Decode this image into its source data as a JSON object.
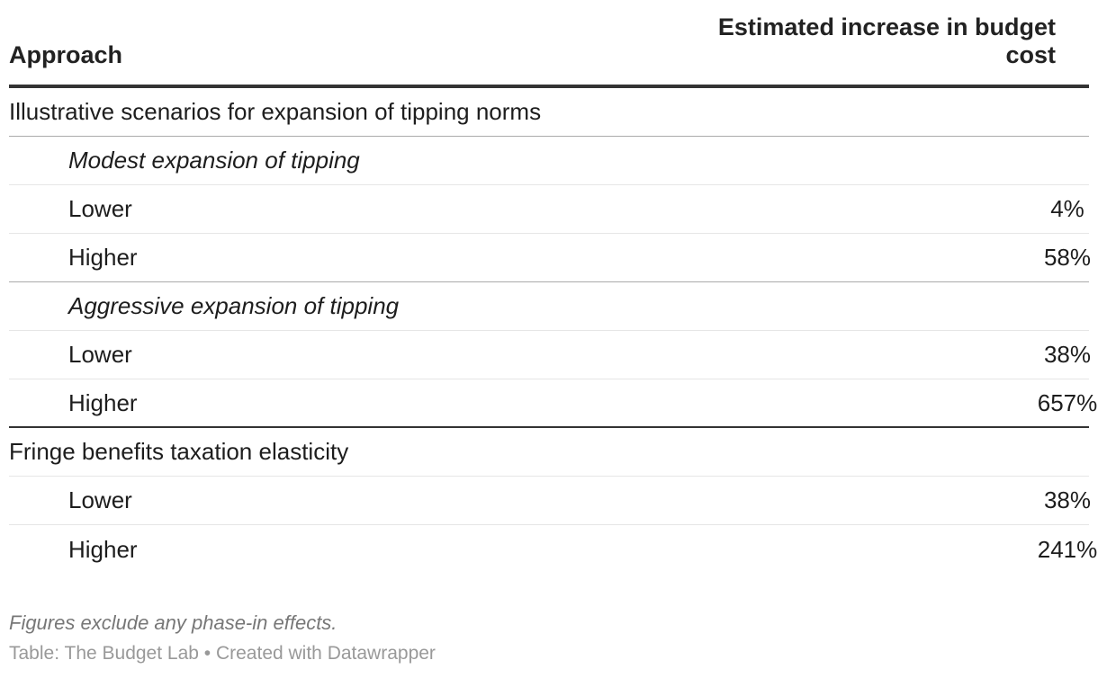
{
  "chart_data": {
    "type": "table",
    "columns": [
      "Approach",
      "Estimated increase in budget cost"
    ],
    "rows": [
      {
        "label": "Illustrative scenarios for expansion of tipping norms",
        "value": "",
        "level": 0,
        "italic": false
      },
      {
        "label": "Modest expansion of tipping",
        "value": "",
        "level": 1,
        "italic": true
      },
      {
        "label": "Lower",
        "value": "4%",
        "level": 1,
        "italic": false
      },
      {
        "label": "Higher",
        "value": "58%",
        "level": 1,
        "italic": false
      },
      {
        "label": "Aggressive expansion of tipping",
        "value": "",
        "level": 1,
        "italic": true
      },
      {
        "label": "Lower",
        "value": "38%",
        "level": 1,
        "italic": false
      },
      {
        "label": "Higher",
        "value": "657%",
        "level": 1,
        "italic": false
      },
      {
        "label": "Fringe benefits taxation elasticity",
        "value": "",
        "level": 0,
        "italic": false
      },
      {
        "label": "Lower",
        "value": "38%",
        "level": 1,
        "italic": false
      },
      {
        "label": "Higher",
        "value": "241%",
        "level": 1,
        "italic": false
      }
    ],
    "note": "Figures exclude any phase-in effects.",
    "source": "Table: The Budget Lab • Created with Datawrapper"
  }
}
